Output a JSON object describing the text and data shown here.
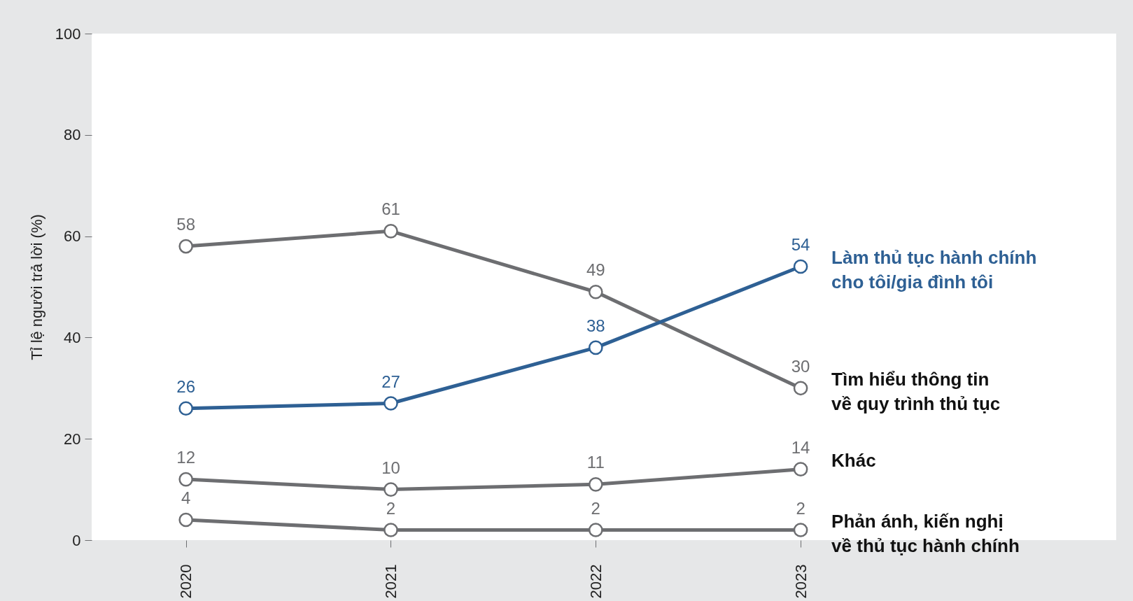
{
  "chart_data": {
    "type": "line",
    "ylabel": "Tỉ lệ người trả lời (%)",
    "categories": [
      "2020",
      "2021",
      "2022",
      "2023"
    ],
    "ylim": [
      0,
      100
    ],
    "yticks": [
      0,
      20,
      40,
      60,
      80,
      100
    ],
    "grid": false,
    "legend": false,
    "marker": "circle",
    "data_labels": true,
    "series": [
      {
        "name": "Tìm hiểu thông tin về quy trình thủ tục",
        "color": "#6d6e71",
        "values": [
          58,
          61,
          49,
          30
        ]
      },
      {
        "name": "Khác",
        "color": "#6d6e71",
        "values": [
          12,
          10,
          11,
          14
        ]
      },
      {
        "name": "Phản ánh, kiến nghị về thủ tục hành chính",
        "color": "#6d6e71",
        "values": [
          4,
          2,
          2,
          2
        ]
      },
      {
        "name": "Làm thủ tục hành chính cho tôi/gia đình tôi",
        "color": "#2e6094",
        "values": [
          26,
          27,
          38,
          54
        ]
      }
    ]
  }
}
